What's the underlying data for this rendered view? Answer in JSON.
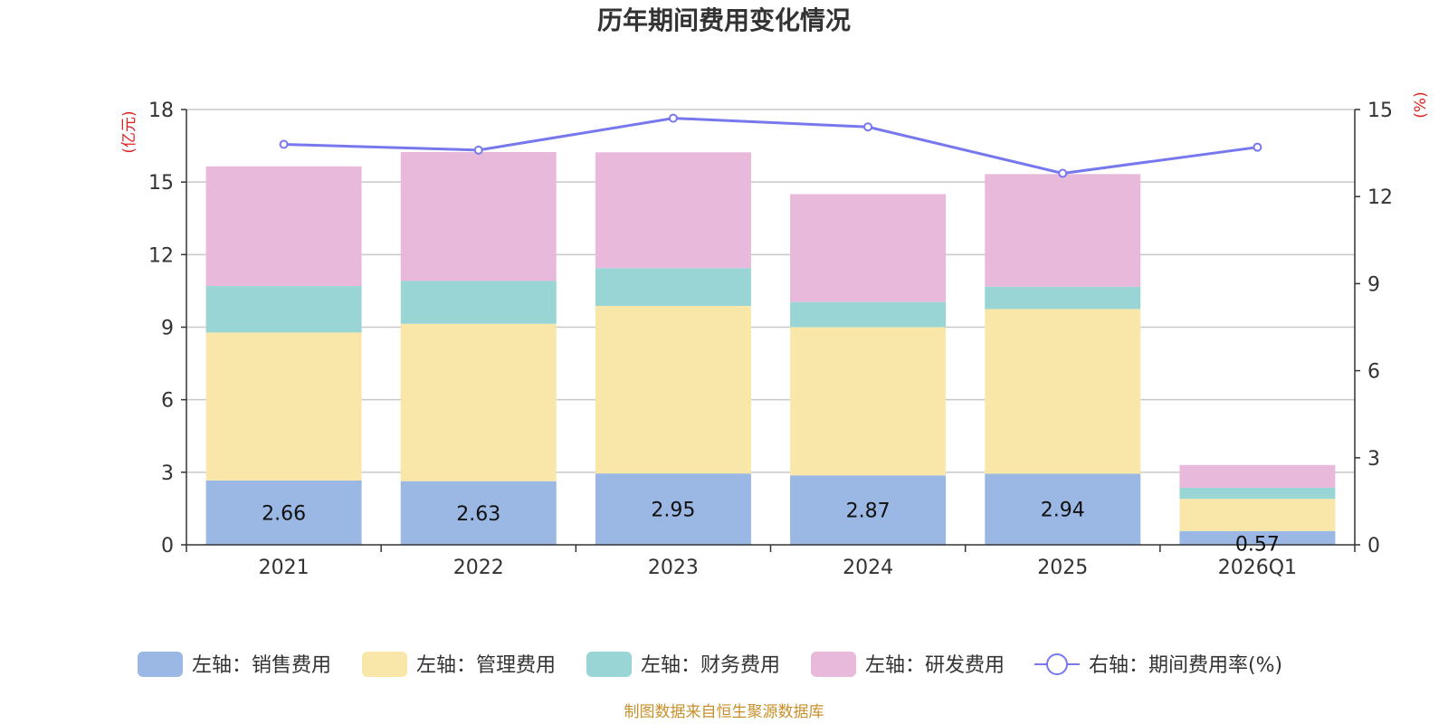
{
  "chart_data": {
    "type": "bar",
    "title": "历年期间费用变化情况",
    "categories": [
      "2021",
      "2022",
      "2023",
      "2024",
      "2025",
      "2026Q1"
    ],
    "left_axis": {
      "unit": "(亿元)",
      "ylim": [
        0,
        18
      ],
      "ticks": [
        "0",
        "3",
        "6",
        "9",
        "12",
        "15",
        "18"
      ]
    },
    "right_axis": {
      "unit": "(%)",
      "ylim": [
        0,
        15
      ],
      "ticks": [
        "0",
        "3",
        "6",
        "9",
        "12",
        "15"
      ]
    },
    "series": [
      {
        "name": "左轴：销售费用",
        "axis": "left",
        "color": "#9bb7e3",
        "values": [
          2.66,
          2.63,
          2.95,
          2.87,
          2.94,
          0.57
        ],
        "labels": [
          "2.66",
          "2.63",
          "2.95",
          "2.87",
          "2.94",
          "0.57"
        ]
      },
      {
        "name": "左轴：管理费用",
        "axis": "left",
        "color": "#f8e7a8",
        "values": [
          6.12,
          6.51,
          6.93,
          6.13,
          6.81,
          1.33
        ]
      },
      {
        "name": "左轴：财务费用",
        "axis": "left",
        "color": "#99d5d5",
        "values": [
          1.92,
          1.77,
          1.56,
          1.04,
          0.92,
          0.46
        ]
      },
      {
        "name": "左轴：研发费用",
        "axis": "left",
        "color": "#e8b9da",
        "values": [
          4.95,
          5.33,
          4.79,
          4.46,
          4.66,
          0.94
        ]
      },
      {
        "name": "右轴：期间费用率(%)",
        "axis": "right",
        "type": "line",
        "color": "#7878ee",
        "values": [
          13.8,
          13.6,
          14.7,
          14.4,
          12.8,
          13.7
        ]
      }
    ],
    "grid": true,
    "legend_position": "bottom"
  },
  "footer": {
    "source": "制图数据来自恒生聚源数据库"
  }
}
